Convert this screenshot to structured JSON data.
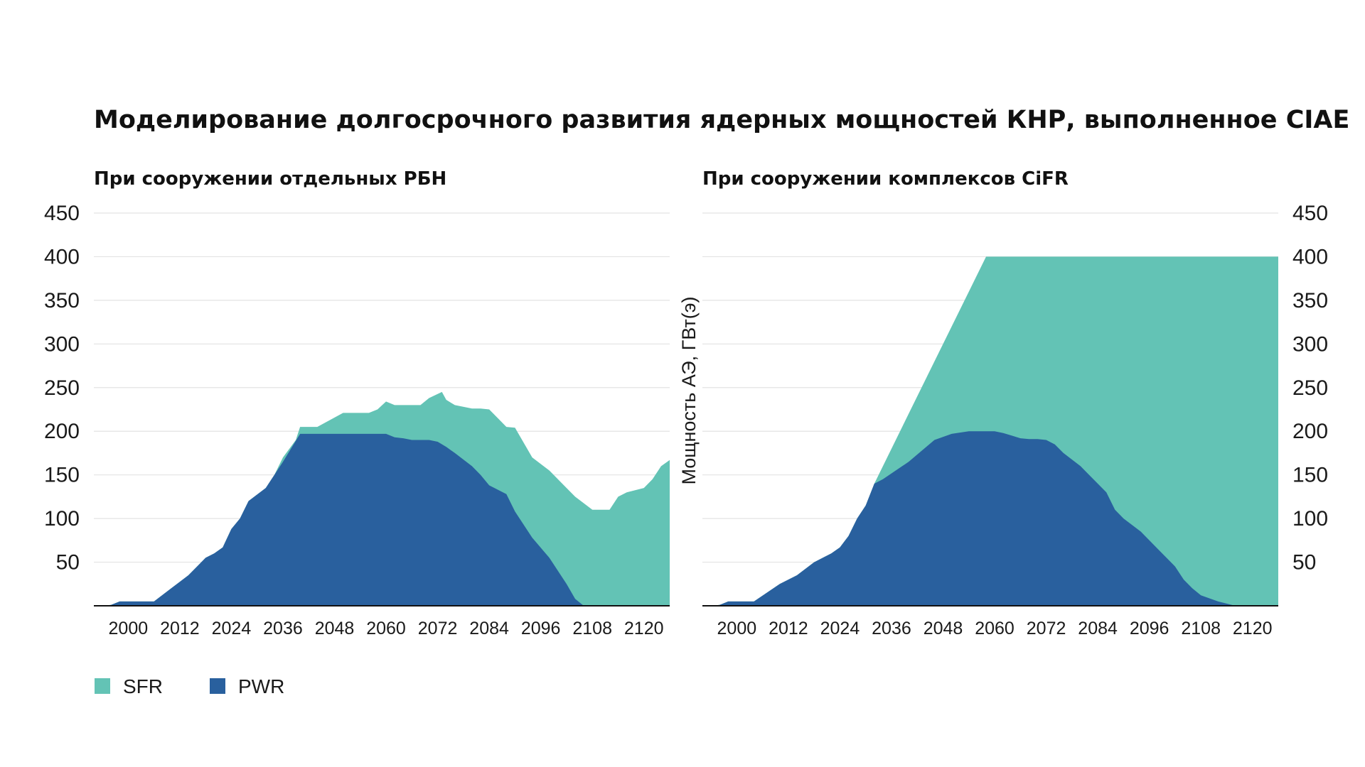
{
  "title": "Моделирование долгосрочного развития ядерных мощностей КНР, выполненное CIAE",
  "ylabel": "Мощность АЭ, ГВт(э)",
  "colors": {
    "SFR": "#63c3b5",
    "PWR": "#29609e"
  },
  "legend": [
    {
      "key": "SFR",
      "label": "SFR"
    },
    {
      "key": "PWR",
      "label": "PWR"
    }
  ],
  "chart_data": [
    {
      "type": "area",
      "stacked": false,
      "title": "При сооружении отдельных РБН",
      "xlim": [
        1992,
        2126
      ],
      "ylim": [
        0,
        450
      ],
      "xticks": [
        2000,
        2012,
        2024,
        2036,
        2048,
        2060,
        2072,
        2084,
        2096,
        2108,
        2120
      ],
      "yticks": [
        50,
        100,
        150,
        200,
        250,
        300,
        350,
        400,
        450
      ],
      "ytick_side": "left",
      "grid": true,
      "series": [
        {
          "name": "SFR",
          "key": "SFR",
          "x": [
            1994,
            1996,
            1998,
            2002,
            2004,
            2006,
            2010,
            2014,
            2016,
            2018,
            2020,
            2022,
            2024,
            2026,
            2028,
            2032,
            2034,
            2036,
            2039,
            2040,
            2044,
            2050,
            2052,
            2056,
            2058,
            2060,
            2062,
            2064,
            2068,
            2070,
            2073,
            2074,
            2076,
            2080,
            2082,
            2084,
            2086,
            2088,
            2090,
            2094,
            2098,
            2102,
            2104,
            2108,
            2112,
            2114,
            2116,
            2120,
            2122,
            2124,
            2126
          ],
          "y": [
            0,
            1,
            5,
            5,
            5,
            5,
            20,
            35,
            45,
            55,
            60,
            67,
            88,
            100,
            120,
            135,
            150,
            170,
            190,
            205,
            205,
            221,
            221,
            221,
            225,
            234,
            230,
            230,
            230,
            238,
            245,
            236,
            230,
            226,
            226,
            225,
            215,
            205,
            204,
            170,
            155,
            135,
            125,
            110,
            110,
            125,
            130,
            135,
            145,
            160,
            167
          ]
        },
        {
          "name": "PWR",
          "key": "PWR",
          "x": [
            1994,
            1996,
            1998,
            2002,
            2004,
            2006,
            2010,
            2014,
            2016,
            2018,
            2020,
            2022,
            2024,
            2026,
            2028,
            2032,
            2034,
            2036,
            2040,
            2044,
            2050,
            2052,
            2056,
            2058,
            2060,
            2062,
            2064,
            2066,
            2068,
            2070,
            2072,
            2074,
            2076,
            2080,
            2082,
            2084,
            2088,
            2090,
            2094,
            2098,
            2102,
            2104,
            2106,
            2110,
            2116,
            2126
          ],
          "y": [
            0,
            1,
            5,
            5,
            5,
            5,
            20,
            35,
            45,
            55,
            60,
            67,
            88,
            100,
            120,
            135,
            150,
            165,
            197,
            197,
            197,
            197,
            197,
            197,
            197,
            193,
            192,
            190,
            190,
            190,
            188,
            182,
            175,
            160,
            150,
            138,
            128,
            108,
            78,
            55,
            25,
            8,
            0,
            0,
            0,
            0
          ]
        }
      ]
    },
    {
      "type": "area",
      "stacked": false,
      "title": "При сооружении комплексов CiFR",
      "xlim": [
        1992,
        2126
      ],
      "ylim": [
        0,
        450
      ],
      "xticks": [
        2000,
        2012,
        2024,
        2036,
        2048,
        2060,
        2072,
        2084,
        2096,
        2108,
        2120
      ],
      "yticks": [
        50,
        100,
        150,
        200,
        250,
        300,
        350,
        400,
        450
      ],
      "ytick_side": "right",
      "grid": true,
      "series": [
        {
          "name": "SFR",
          "key": "SFR",
          "x": [
            1994,
            1996,
            1998,
            2002,
            2004,
            2010,
            2014,
            2018,
            2020,
            2022,
            2024,
            2026,
            2028,
            2030,
            2032,
            2034,
            2040,
            2046,
            2050,
            2054,
            2056,
            2058,
            2060,
            2066,
            2072,
            2084,
            2096,
            2108,
            2120,
            2126
          ],
          "y": [
            0,
            1,
            5,
            5,
            5,
            25,
            35,
            50,
            55,
            60,
            67,
            80,
            100,
            115,
            140,
            160,
            220,
            280,
            320,
            360,
            380,
            400,
            400,
            400,
            400,
            400,
            400,
            400,
            400,
            400
          ]
        },
        {
          "name": "PWR",
          "key": "PWR",
          "x": [
            1994,
            1996,
            1998,
            2002,
            2004,
            2010,
            2014,
            2018,
            2020,
            2022,
            2024,
            2026,
            2028,
            2030,
            2032,
            2034,
            2040,
            2046,
            2050,
            2054,
            2056,
            2058,
            2060,
            2062,
            2064,
            2066,
            2068,
            2070,
            2072,
            2074,
            2076,
            2080,
            2082,
            2084,
            2086,
            2088,
            2090,
            2094,
            2098,
            2100,
            2102,
            2104,
            2106,
            2108,
            2112,
            2116,
            2126
          ],
          "y": [
            0,
            1,
            5,
            5,
            5,
            25,
            35,
            50,
            55,
            60,
            67,
            80,
            100,
            115,
            140,
            145,
            165,
            190,
            197,
            200,
            200,
            200,
            200,
            198,
            195,
            192,
            191,
            191,
            190,
            185,
            175,
            160,
            150,
            140,
            130,
            110,
            100,
            85,
            65,
            55,
            45,
            30,
            20,
            12,
            5,
            0,
            0
          ]
        }
      ]
    }
  ]
}
